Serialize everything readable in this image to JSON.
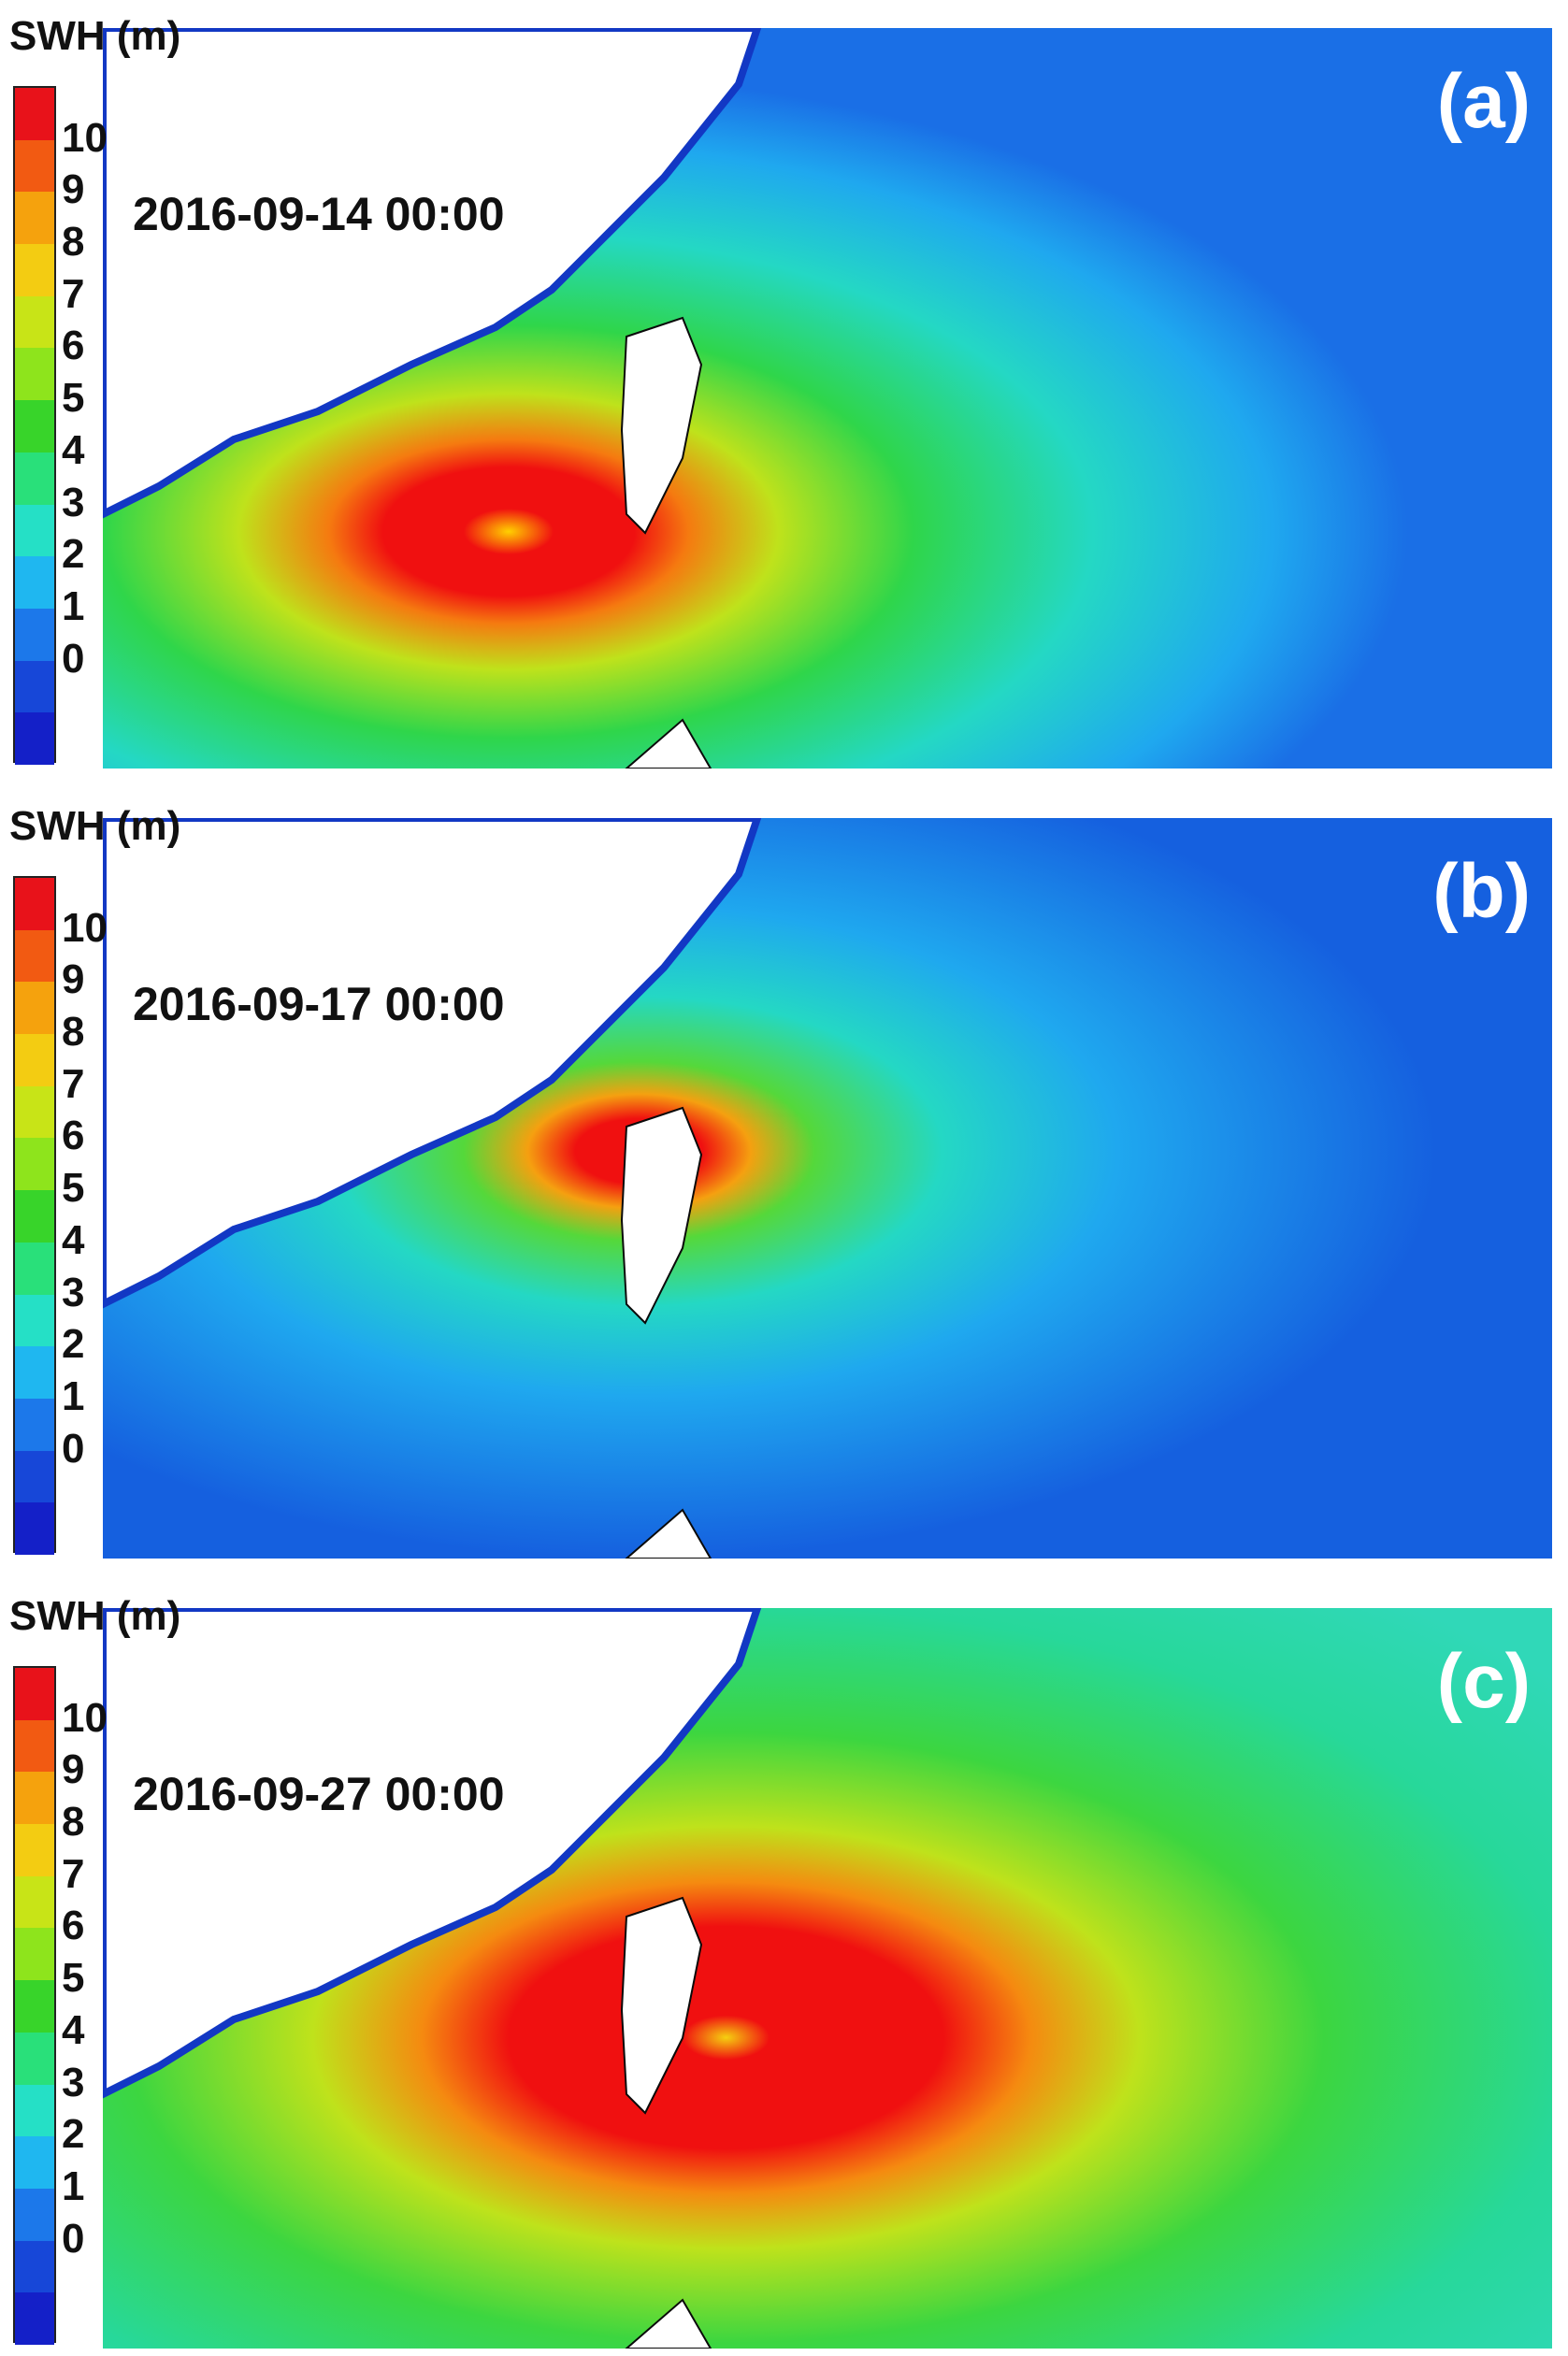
{
  "legend": {
    "title": "SWH (m)",
    "ticks": [
      "10",
      "9",
      "8",
      "7",
      "6",
      "5",
      "4",
      "3",
      "2",
      "1",
      "0"
    ],
    "colors": [
      "#e8121a",
      "#f25a12",
      "#f5a20d",
      "#f3cc12",
      "#c8e417",
      "#8ee41c",
      "#38d42a",
      "#29e07a",
      "#25e0c6",
      "#1fb7f0",
      "#1c78ea",
      "#1747d8",
      "#1420c8"
    ]
  },
  "panels": [
    {
      "label": "(a)",
      "timestamp": "2016-09-14 00:00"
    },
    {
      "label": "(b)",
      "timestamp": "2016-09-17 00:00"
    },
    {
      "label": "(c)",
      "timestamp": "2016-09-27 00:00"
    }
  ],
  "map_colors": {
    "open_ocean_a": "#1a6fe6",
    "open_ocean_b": "#1560df",
    "open_ocean_c": "#30d8b8",
    "land": "#ffffff",
    "coast": "#1238c4"
  }
}
